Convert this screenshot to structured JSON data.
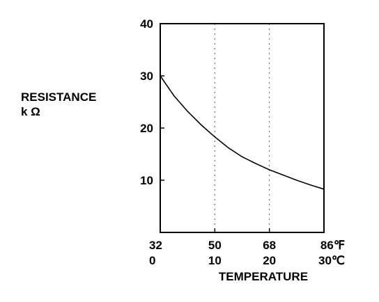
{
  "chart_data": {
    "type": "line",
    "title": "",
    "ylabel": "RESISTANCE",
    "ylabel_unit": "k Ω",
    "xlabel": "TEMPERATURE",
    "ylim": [
      0,
      40
    ],
    "xlim": [
      0,
      30
    ],
    "y_ticks": [
      "10",
      "20",
      "30",
      "40"
    ],
    "y_tick_values": [
      10,
      20,
      30,
      40
    ],
    "x_ticks_celsius": [
      "0",
      "10",
      "20",
      "30℃"
    ],
    "x_ticks_fahrenheit": [
      "32",
      "50",
      "68",
      "86℉"
    ],
    "x_tick_values": [
      0,
      10,
      20,
      30
    ],
    "grid": "vertical-dashed",
    "series": [
      {
        "x": [
          0,
          2.5,
          5,
          7.5,
          10,
          12.5,
          15,
          17.5,
          20,
          22.5,
          25,
          27.5,
          30
        ],
        "values": [
          30.0,
          26.2,
          23.2,
          20.6,
          18.3,
          16.2,
          14.5,
          13.2,
          12.0,
          11.0,
          10.0,
          9.1,
          8.3
        ]
      }
    ]
  }
}
